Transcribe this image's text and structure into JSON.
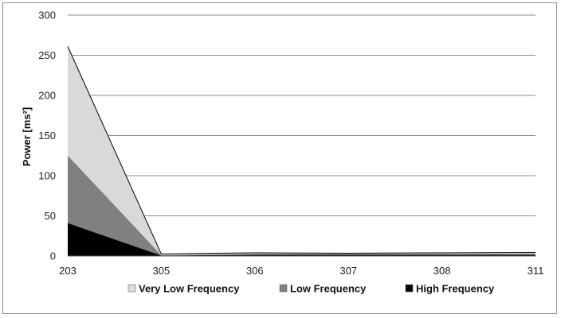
{
  "chart_data": {
    "type": "area",
    "stacked": true,
    "x": [
      "203",
      "305",
      "306",
      "307",
      "308",
      "311"
    ],
    "x_tick_labels": [
      "203",
      "305",
      "306",
      "307",
      "308",
      "311"
    ],
    "y_ticks": [
      0,
      50,
      100,
      150,
      200,
      250,
      300
    ],
    "ylim": [
      0,
      300
    ],
    "ylabel": "Power [ms²]",
    "xlabel": "",
    "title": "",
    "grid": true,
    "legend_position": "bottom",
    "series": [
      {
        "name": "High Frequency",
        "color": "#000000",
        "values": [
          41,
          0.5,
          1.5,
          1.5,
          1.5,
          1.5
        ]
      },
      {
        "name": "Low Frequency",
        "color": "#808080",
        "values": [
          84,
          0.5,
          1,
          1,
          1,
          1
        ]
      },
      {
        "name": "Very Low Frequency",
        "color": "#d9d9d9",
        "values": [
          136,
          1.5,
          1.5,
          1,
          1.5,
          2
        ]
      }
    ]
  }
}
